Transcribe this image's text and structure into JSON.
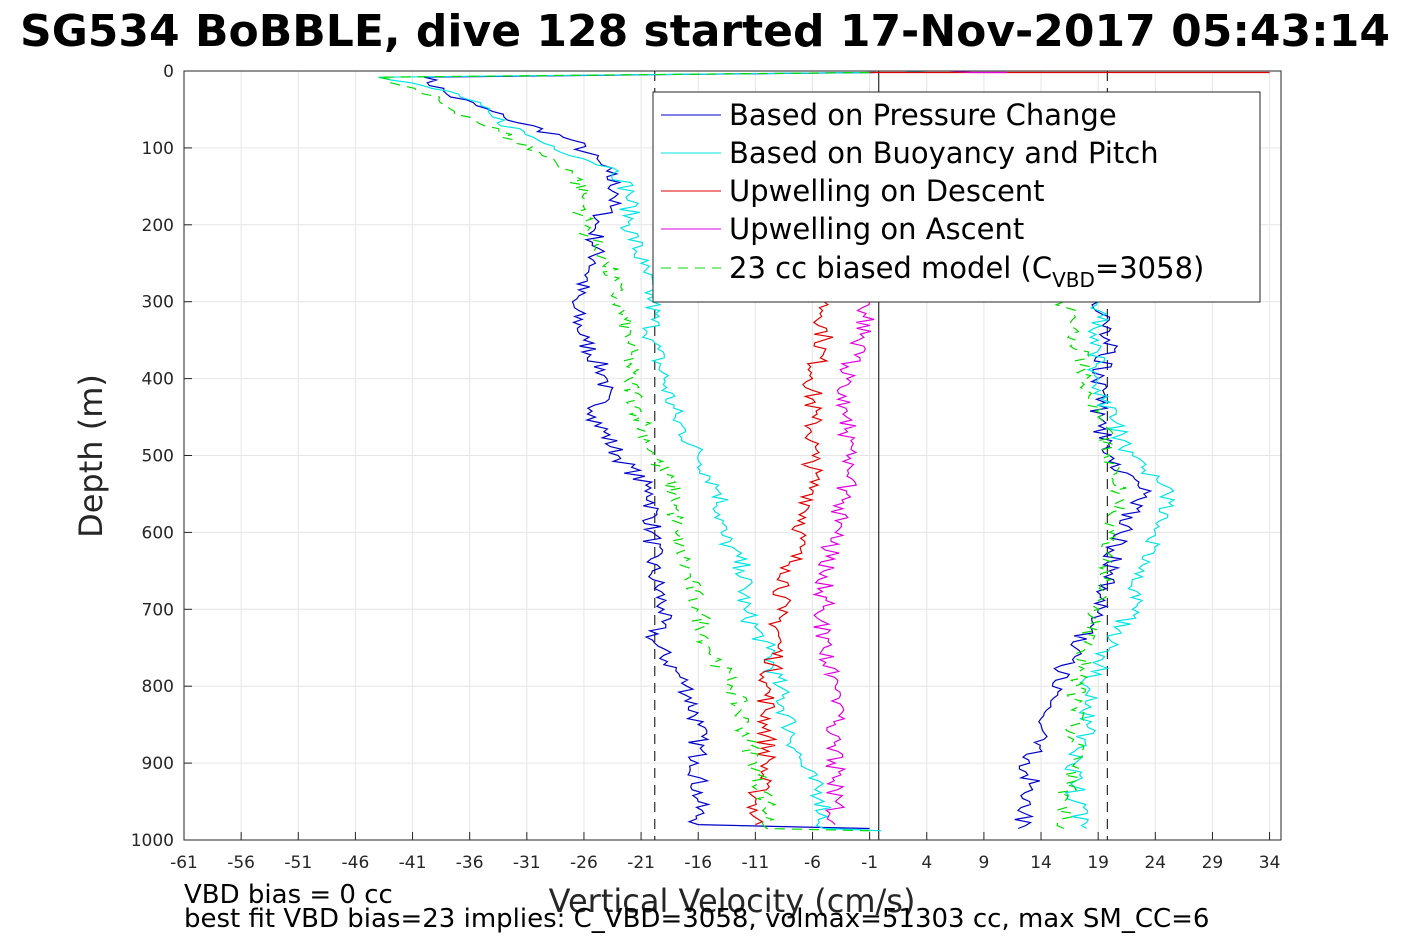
{
  "chart_data": {
    "type": "line",
    "title": "SG534 BoBBLE, dive 128 started 17-Nov-2017 05:43:14",
    "xlabel": "Vertical Velocity (cm/s)",
    "ylabel": "Depth (m)",
    "xlim": [
      -61,
      35
    ],
    "ylim": [
      0,
      1000
    ],
    "y_reversed": true,
    "grid": true,
    "xticks": [
      "-61",
      "-56",
      "-51",
      "-46",
      "-41",
      "-36",
      "-31",
      "-26",
      "-21",
      "-16",
      "-11",
      "-6",
      "-1",
      "4",
      "9",
      "14",
      "19",
      "24",
      "29",
      "34"
    ],
    "yticks": [
      "0",
      "100",
      "200",
      "300",
      "400",
      "500",
      "600",
      "700",
      "800",
      "900",
      "1000"
    ],
    "legend_placement": "top-right",
    "legend": {
      "pressure": "Based on Pressure Change",
      "buoyancy": "Based on Buoyancy and Pitch",
      "up_descent": "Upwelling on Descent",
      "up_ascent": "Upwelling on Ascent",
      "model_prefix": "23 cc biased model (C",
      "model_sub": "VBD",
      "model_suffix": "=3058)"
    },
    "reference_lines": {
      "zero_x": -0.2,
      "dashed_x": [
        -19.8,
        19.8
      ]
    },
    "colors": {
      "pressure": "#0000cc",
      "buoyancy": "#00e5e5",
      "up_descent": "#e00000",
      "up_ascent": "#e000e0",
      "model": "#00dd00"
    },
    "series": [
      {
        "key": "pressure",
        "name": "Based on Pressure Change",
        "descent": [
          [
            -0.5,
            2
          ],
          [
            -40,
            8
          ],
          [
            -38,
            30
          ],
          [
            -33,
            60
          ],
          [
            -27,
            90
          ],
          [
            -24,
            130
          ],
          [
            -23,
            160
          ],
          [
            -25,
            200
          ],
          [
            -25,
            250
          ],
          [
            -27,
            300
          ],
          [
            -26,
            350
          ],
          [
            -24,
            400
          ],
          [
            -25,
            450
          ],
          [
            -23,
            500
          ],
          [
            -20,
            550
          ],
          [
            -20,
            600
          ],
          [
            -20,
            650
          ],
          [
            -19,
            700
          ],
          [
            -20,
            740
          ],
          [
            -17,
            800
          ],
          [
            -16,
            850
          ],
          [
            -16,
            900
          ],
          [
            -16,
            950
          ],
          [
            -16,
            980
          ],
          [
            -1,
            985
          ]
        ],
        "ascent": [
          [
            12,
            985
          ],
          [
            13,
            950
          ],
          [
            13,
            900
          ],
          [
            14,
            850
          ],
          [
            15,
            800
          ],
          [
            17,
            750
          ],
          [
            19,
            700
          ],
          [
            20,
            650
          ],
          [
            21,
            600
          ],
          [
            23,
            550
          ],
          [
            20,
            500
          ],
          [
            19,
            450
          ],
          [
            19,
            400
          ],
          [
            20,
            350
          ],
          [
            20,
            320
          ],
          [
            19,
            300
          ]
        ]
      },
      {
        "key": "buoyancy",
        "name": "Based on Buoyancy and Pitch",
        "descent": [
          [
            -0.5,
            2
          ],
          [
            -44,
            8
          ],
          [
            -37,
            30
          ],
          [
            -34,
            60
          ],
          [
            -30,
            90
          ],
          [
            -23,
            130
          ],
          [
            -22,
            160
          ],
          [
            -22,
            200
          ],
          [
            -21,
            250
          ],
          [
            -20,
            300
          ],
          [
            -20,
            350
          ],
          [
            -19,
            400
          ],
          [
            -18,
            450
          ],
          [
            -16,
            500
          ],
          [
            -14,
            550
          ],
          [
            -14,
            600
          ],
          [
            -12,
            650
          ],
          [
            -12,
            700
          ],
          [
            -10,
            750
          ],
          [
            -9,
            800
          ],
          [
            -8,
            850
          ],
          [
            -7,
            900
          ],
          [
            -5,
            950
          ],
          [
            -5,
            985
          ],
          [
            0,
            988
          ]
        ],
        "ascent": [
          [
            18,
            985
          ],
          [
            17,
            950
          ],
          [
            17,
            900
          ],
          [
            18,
            850
          ],
          [
            18,
            800
          ],
          [
            20,
            750
          ],
          [
            22,
            700
          ],
          [
            23,
            650
          ],
          [
            24,
            600
          ],
          [
            25,
            550
          ],
          [
            22,
            500
          ],
          [
            20,
            450
          ],
          [
            19,
            400
          ],
          [
            19,
            350
          ],
          [
            19,
            320
          ],
          [
            19,
            300
          ]
        ],
        "surface": [
          [
            2,
            0
          ],
          [
            4,
            2
          ]
        ]
      },
      {
        "key": "up_descent",
        "name": "Upwelling on Descent",
        "descent": [
          [
            -5,
            300
          ],
          [
            -5,
            350
          ],
          [
            -6,
            400
          ],
          [
            -6,
            450
          ],
          [
            -6,
            500
          ],
          [
            -6,
            550
          ],
          [
            -7,
            600
          ],
          [
            -8,
            650
          ],
          [
            -9,
            700
          ],
          [
            -9,
            750
          ],
          [
            -10,
            800
          ],
          [
            -10,
            850
          ],
          [
            -10,
            900
          ],
          [
            -11,
            950
          ],
          [
            -11,
            980
          ]
        ],
        "surface": [
          [
            -1,
            2
          ],
          [
            34,
            2
          ]
        ]
      },
      {
        "key": "up_ascent",
        "name": "Upwelling on Ascent",
        "ascent": [
          [
            -4,
            980
          ],
          [
            -4,
            950
          ],
          [
            -4,
            900
          ],
          [
            -4,
            850
          ],
          [
            -4,
            800
          ],
          [
            -5,
            750
          ],
          [
            -5,
            700
          ],
          [
            -5,
            650
          ],
          [
            -4,
            600
          ],
          [
            -3,
            550
          ],
          [
            -3,
            500
          ],
          [
            -3,
            450
          ],
          [
            -3,
            400
          ],
          [
            -2,
            350
          ],
          [
            -1,
            300
          ]
        ],
        "surface": [
          [
            6,
            0
          ],
          [
            8,
            2
          ],
          [
            11,
            2
          ]
        ]
      },
      {
        "key": "model",
        "name": "23 cc biased model (CVBD=3058)",
        "descent": [
          [
            -1,
            2
          ],
          [
            -44,
            8
          ],
          [
            -40,
            30
          ],
          [
            -36,
            60
          ],
          [
            -32,
            90
          ],
          [
            -27,
            130
          ],
          [
            -26,
            160
          ],
          [
            -26,
            200
          ],
          [
            -24,
            250
          ],
          [
            -23,
            300
          ],
          [
            -22,
            350
          ],
          [
            -22,
            400
          ],
          [
            -21,
            450
          ],
          [
            -20,
            500
          ],
          [
            -18,
            550
          ],
          [
            -18,
            600
          ],
          [
            -17,
            650
          ],
          [
            -16,
            700
          ],
          [
            -15,
            750
          ],
          [
            -13,
            800
          ],
          [
            -12,
            850
          ],
          [
            -11,
            900
          ],
          [
            -10,
            950
          ],
          [
            -10,
            985
          ],
          [
            -1,
            988
          ]
        ],
        "ascent": [
          [
            16,
            985
          ],
          [
            16,
            950
          ],
          [
            17,
            900
          ],
          [
            17,
            850
          ],
          [
            17,
            800
          ],
          [
            18,
            750
          ],
          [
            19,
            700
          ],
          [
            20,
            650
          ],
          [
            20,
            600
          ],
          [
            21,
            550
          ],
          [
            20,
            500
          ],
          [
            19,
            450
          ],
          [
            18,
            400
          ],
          [
            17,
            350
          ],
          [
            17,
            320
          ],
          [
            16,
            300
          ]
        ]
      }
    ],
    "annotations": {
      "line1": "VBD bias = 0 cc",
      "line2": "best fit VBD bias=23 implies: C_VBD=3058, volmax=51303 cc, max SM_CC=6"
    }
  }
}
